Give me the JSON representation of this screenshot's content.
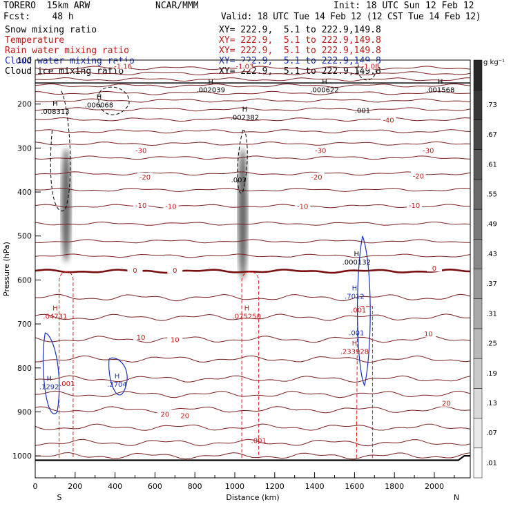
{
  "header": {
    "model": "TORERO  15km ARW",
    "fcst": "Fcst:    48 h",
    "center": "NCAR/MMM",
    "init": "Init: 18 UTC Sun 12 Feb 12",
    "valid": "Valid: 18 UTC Tue 14 Feb 12 (12 CST Tue 14 Feb 12)"
  },
  "legend": [
    {
      "name": "Snow mixing ratio",
      "xy": "XY= 222.9,  5.1 to 222.9,149.8",
      "color": "#000000"
    },
    {
      "name": "Temperature",
      "xy": "XY= 222.9,  5.1 to 222.9,149.8",
      "color": "#c01818"
    },
    {
      "name": "Rain water mixing ratio",
      "xy": "XY= 222.9,  5.1 to 222.9,149.8",
      "color": "#c01818"
    },
    {
      "name": "Cloud water mixing ratio",
      "xy": "XY= 222.9,  5.1 to 222.9,149.8",
      "color": "#1a2fb8"
    },
    {
      "name": "Cloud ice mixing ratio",
      "xy": "XY= 222.9,  5.1 to 222.9,149.8",
      "color": "#000000"
    }
  ],
  "chart_data": {
    "type": "cross-section",
    "xlabel": "Distance (km)",
    "ylabel": "Pressure (hPa)",
    "xlim": [
      0,
      2180
    ],
    "ylim": [
      1050,
      100
    ],
    "xticks": [
      0,
      200,
      400,
      600,
      800,
      1000,
      1200,
      1400,
      1600,
      1800,
      2000
    ],
    "yticks": [
      100,
      200,
      300,
      400,
      500,
      600,
      700,
      800,
      900,
      1000
    ],
    "left_end": "S",
    "right_end": "N",
    "colorbar": {
      "unit": "g kg⁻¹",
      "levels": [
        ".01",
        ".07",
        ".13",
        ".19",
        ".25",
        ".31",
        ".37",
        ".43",
        ".49",
        ".55",
        ".61",
        ".67",
        ".73"
      ]
    },
    "temperature_labels": [
      {
        "text": "-30",
        "x": 530,
        "p": 305
      },
      {
        "text": "-30",
        "x": 1430,
        "p": 305
      },
      {
        "text": "-30",
        "x": 1970,
        "p": 305
      },
      {
        "text": "-20",
        "x": 550,
        "p": 365
      },
      {
        "text": "-20",
        "x": 1410,
        "p": 365
      },
      {
        "text": "-20",
        "x": 1920,
        "p": 363
      },
      {
        "text": "-10",
        "x": 530,
        "p": 430
      },
      {
        "text": "-10",
        "x": 680,
        "p": 432
      },
      {
        "text": "-10",
        "x": 1340,
        "p": 432
      },
      {
        "text": "-10",
        "x": 1900,
        "p": 430
      },
      {
        "text": "0",
        "x": 500,
        "p": 577
      },
      {
        "text": "0",
        "x": 700,
        "p": 577
      },
      {
        "text": "0",
        "x": 2000,
        "p": 573
      },
      {
        "text": "10",
        "x": 530,
        "p": 730
      },
      {
        "text": "10",
        "x": 700,
        "p": 735
      },
      {
        "text": "10",
        "x": 1970,
        "p": 722
      },
      {
        "text": "20",
        "x": 650,
        "p": 905
      },
      {
        "text": "20",
        "x": 750,
        "p": 908
      },
      {
        "text": "20",
        "x": 2060,
        "p": 880
      },
      {
        "text": "-40",
        "x": 1770,
        "p": 236
      },
      {
        "text": "-1.16",
        "x": 440,
        "p": 113
      },
      {
        "text": "-1.03",
        "x": 1050,
        "p": 113
      },
      {
        "text": "-1.08",
        "x": 1680,
        "p": 113
      }
    ],
    "extrema_labels": [
      {
        "h": "H",
        "v": ".008313",
        "x": 100,
        "p": 215,
        "color": "#000000"
      },
      {
        "h": "H",
        "v": ".006068",
        "x": 320,
        "p": 200,
        "color": "#000000"
      },
      {
        "h": "H",
        "v": ".002039",
        "x": 880,
        "p": 165,
        "color": "#000000"
      },
      {
        "h": "H",
        "v": ".002382",
        "x": 1050,
        "p": 228,
        "color": "#000000"
      },
      {
        "h": "H",
        "v": ".000622",
        "x": 1450,
        "p": 165,
        "color": "#000000"
      },
      {
        "h": "H",
        "v": ".001568",
        "x": 2030,
        "p": 165,
        "color": "#000000"
      },
      {
        "h": "",
        "v": ".001",
        "x": 1640,
        "p": 212,
        "color": "#000000"
      },
      {
        "h": "",
        "v": ".001",
        "x": 1020,
        "p": 370,
        "color": "#000000"
      },
      {
        "h": "H",
        "v": ".04731",
        "x": 100,
        "p": 680,
        "color": "#c01818"
      },
      {
        "h": "H",
        "v": ".075250",
        "x": 1060,
        "p": 680,
        "color": "#c01818"
      },
      {
        "h": "H",
        "v": ".233928",
        "x": 1600,
        "p": 760,
        "color": "#c01818"
      },
      {
        "h": "",
        "v": ".001",
        "x": 160,
        "p": 833,
        "color": "#c01818"
      },
      {
        "h": "",
        "v": ".001",
        "x": 1120,
        "p": 963,
        "color": "#c01818"
      },
      {
        "h": "",
        "v": ".001",
        "x": 1620,
        "p": 666,
        "color": "#c01818"
      },
      {
        "h": "H",
        "v": ".1292",
        "x": 70,
        "p": 840,
        "color": "#1a2fb8"
      },
      {
        "h": "H",
        "v": ".2704",
        "x": 410,
        "p": 835,
        "color": "#1a2fb8"
      },
      {
        "h": "H",
        "v": ".000132",
        "x": 1610,
        "p": 557,
        "color": "#000000"
      },
      {
        "h": "H",
        "v": ".7012",
        "x": 1600,
        "p": 635,
        "color": "#1a2fb8"
      },
      {
        "h": "",
        "v": ".001",
        "x": 1610,
        "p": 718,
        "color": "#1a2fb8"
      }
    ]
  }
}
